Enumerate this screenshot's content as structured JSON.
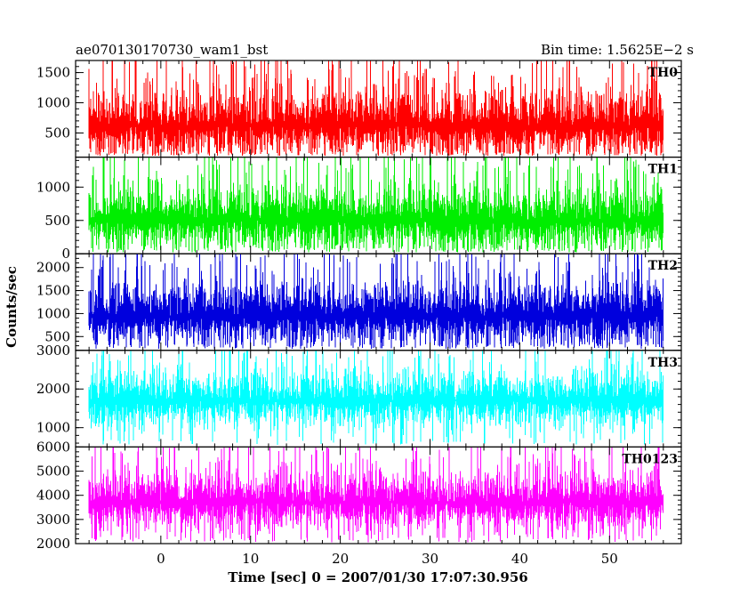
{
  "header": {
    "title": "ae070130170730_wam1_bst",
    "bin_time": "Bin time: 1.5625E−2 s"
  },
  "chart_data": {
    "type": "line",
    "xlabel": "Time [sec] 0 = 2007/01/30 17:07:30.956",
    "ylabel": "Counts/sec",
    "xlim": [
      -9.5,
      58
    ],
    "x_ticks": [
      0,
      10,
      20,
      30,
      40,
      50
    ],
    "x_tick_labels": [
      "0",
      "10",
      "20",
      "30",
      "40",
      "50"
    ],
    "x_data_range": [
      -8,
      56
    ],
    "panels": [
      {
        "label": "TH0",
        "color": "#ff0000",
        "ylim": [
          100,
          1700
        ],
        "y_ticks": [
          500,
          1000,
          1500
        ],
        "y_tick_labels": [
          "500",
          "1000",
          "1500"
        ],
        "mean": 620,
        "min_level": 120,
        "max_level": 1700
      },
      {
        "label": "TH1",
        "color": "#00ee00",
        "ylim": [
          0,
          1450
        ],
        "y_ticks": [
          0,
          500,
          1000
        ],
        "y_tick_labels": [
          "0",
          "500",
          "1000"
        ],
        "mean": 500,
        "min_level": 20,
        "max_level": 1450
      },
      {
        "label": "TH2",
        "color": "#0000dd",
        "ylim": [
          200,
          2300
        ],
        "y_ticks": [
          500,
          1000,
          1500,
          2000
        ],
        "y_tick_labels": [
          "500",
          "1000",
          "1500",
          "2000"
        ],
        "mean": 950,
        "min_level": 230,
        "max_level": 2300
      },
      {
        "label": "TH3",
        "color": "#00ffff",
        "ylim": [
          500,
          3000
        ],
        "y_ticks": [
          1000,
          2000,
          3000
        ],
        "y_tick_labels": [
          "1000",
          "2000",
          "3000"
        ],
        "mean": 1700,
        "min_level": 560,
        "max_level": 3000
      },
      {
        "label": "TH0123",
        "color": "#ff00ff",
        "ylim": [
          2000,
          6000
        ],
        "y_ticks": [
          2000,
          3000,
          4000,
          5000,
          6000
        ],
        "y_tick_labels": [
          "2000",
          "3000",
          "4000",
          "5000",
          "6000"
        ],
        "mean": 3700,
        "min_level": 2050,
        "max_level": 6000
      }
    ]
  }
}
